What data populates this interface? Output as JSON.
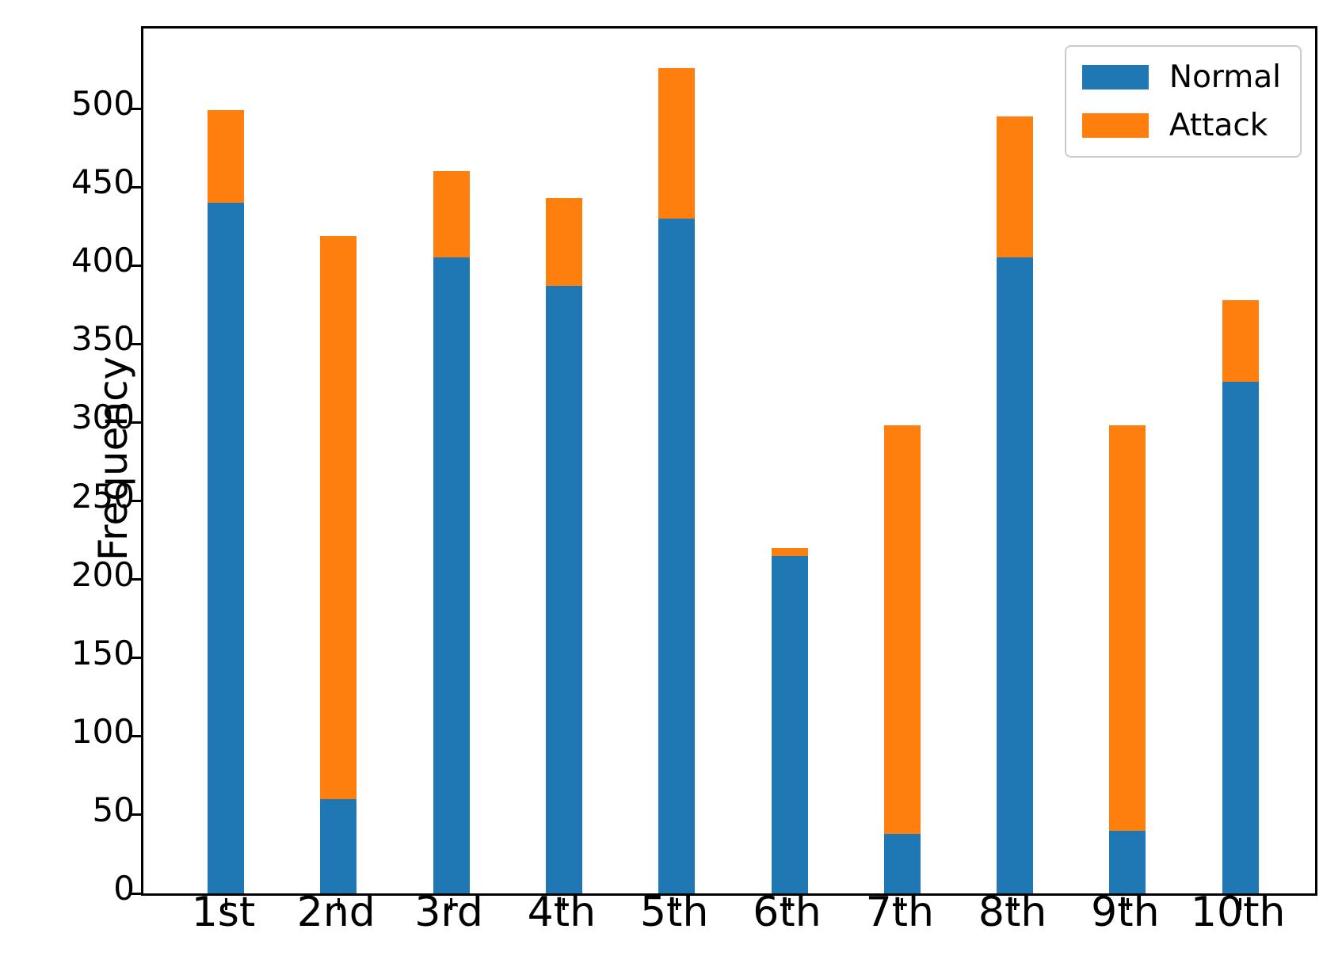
{
  "figure": {
    "y_axis_title": "Frequency"
  },
  "chart_data": {
    "type": "bar",
    "stacked": true,
    "title": "",
    "xlabel": "",
    "ylabel": "Frequency",
    "categories": [
      "1st",
      "2nd",
      "3rd",
      "4th",
      "5th",
      "6th",
      "7th",
      "8th",
      "9th",
      "10th"
    ],
    "series": [
      {
        "name": "Normal",
        "color": "#1f77b4",
        "values": [
          440,
          60,
          405,
          387,
          430,
          215,
          38,
          405,
          40,
          326
        ]
      },
      {
        "name": "Attack",
        "color": "#ff7f0e",
        "values": [
          59,
          359,
          55,
          56,
          96,
          5,
          260,
          90,
          258,
          52
        ]
      }
    ],
    "stack_totals": [
      499,
      419,
      460,
      443,
      526,
      220,
      298,
      495,
      298,
      378
    ],
    "ylim": [
      0,
      551
    ],
    "yticks": [
      0,
      50,
      100,
      150,
      200,
      250,
      300,
      350,
      400,
      450,
      500
    ],
    "grid": false,
    "legend_position": "upper right",
    "legend": {
      "items": [
        {
          "label": "Normal",
          "color": "#1f77b4"
        },
        {
          "label": "Attack",
          "color": "#ff7f0e"
        }
      ]
    },
    "axis_color": "#000000",
    "background_color": "#ffffff"
  }
}
